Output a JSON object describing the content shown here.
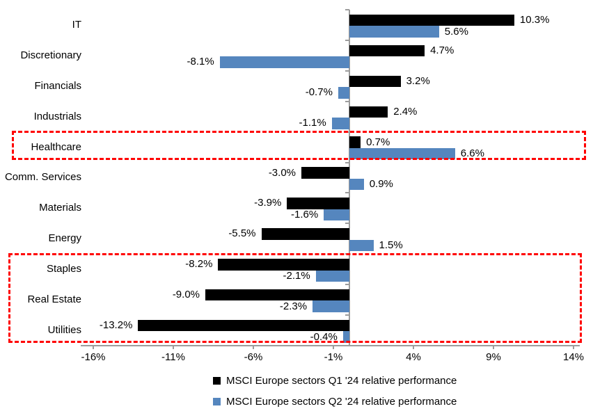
{
  "chart_data": {
    "type": "bar",
    "orientation": "horizontal",
    "title": "",
    "categories": [
      "IT",
      "Discretionary",
      "Financials",
      "Industrials",
      "Healthcare",
      "Comm. Services",
      "Materials",
      "Energy",
      "Staples",
      "Real Estate",
      "Utilities"
    ],
    "series": [
      {
        "name": "MSCI Europe sectors Q1 '24 relative performance",
        "color": "#000000",
        "values": [
          10.3,
          4.7,
          3.2,
          2.4,
          0.7,
          -3.0,
          -3.9,
          -5.5,
          -8.2,
          -9.0,
          -13.2
        ]
      },
      {
        "name": "MSCI Europe sectors Q2 '24 relative performance",
        "color": "#5586BE",
        "values": [
          5.6,
          -8.1,
          -0.7,
          -1.1,
          6.6,
          0.9,
          -1.6,
          1.5,
          -2.1,
          -2.3,
          -0.4
        ]
      }
    ],
    "data_labels": {
      "q1": [
        "10.3%",
        "4.7%",
        "3.2%",
        "2.4%",
        "0.7%",
        "-3.0%",
        "-3.9%",
        "-5.5%",
        "-8.2%",
        "-9.0%",
        "-13.2%"
      ],
      "q2": [
        "5.6%",
        "-8.1%",
        "-0.7%",
        "-1.1%",
        "6.6%",
        "0.9%",
        "-1.6%",
        "1.5%",
        "-2.1%",
        "-2.3%",
        "-0.4%"
      ]
    },
    "x_ticks": [
      {
        "value": -16,
        "label": "-16%"
      },
      {
        "value": -11,
        "label": "-11%"
      },
      {
        "value": -6,
        "label": "-6%"
      },
      {
        "value": -1,
        "label": "-1%"
      },
      {
        "value": 4,
        "label": "4%"
      },
      {
        "value": 9,
        "label": "9%"
      },
      {
        "value": 14,
        "label": "14%"
      }
    ],
    "xlim": [
      -16.8,
      14.4
    ],
    "grid": false,
    "legend_position": "bottom",
    "highlights": [
      {
        "sectors": [
          "Healthcare"
        ],
        "color": "#FF0000",
        "style": "dashed"
      },
      {
        "sectors": [
          "Staples",
          "Real Estate",
          "Utilities"
        ],
        "color": "#FF0000",
        "style": "dashed"
      }
    ]
  },
  "colors": {
    "q1_bar": "#000000",
    "q2_bar": "#5586BE",
    "highlight": "#FF0000",
    "axis": "#9C9C9C",
    "text": "#000000",
    "background": "#FFFFFF"
  }
}
